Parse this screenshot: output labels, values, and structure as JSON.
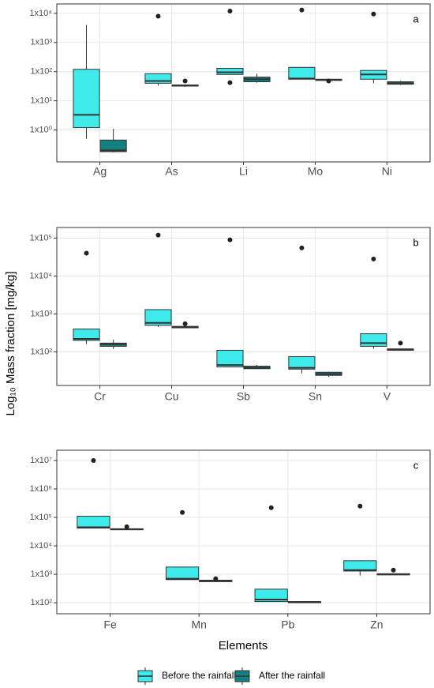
{
  "ylabel": "Log₁₀ Mass fraction [mg/kg]",
  "xlabel": "Elements",
  "legend": [
    {
      "name": "Before the rainfall",
      "color": "#3feaea"
    },
    {
      "name": "After the rainfall",
      "color": "#127f80"
    }
  ],
  "chart_data": [
    {
      "type": "box",
      "panel": "a",
      "log": true,
      "grid": true,
      "categories": [
        "Ag",
        "As",
        "Li",
        "Mo",
        "Ni"
      ],
      "ylim": [
        0.08,
        21000
      ],
      "yticks": [
        {
          "value": 1,
          "label": "1x10⁰"
        },
        {
          "value": 10,
          "label": "1x10¹"
        },
        {
          "value": 100,
          "label": "1x10²"
        },
        {
          "value": 1000,
          "label": "1x10³"
        },
        {
          "value": 10000,
          "label": "1x10⁴"
        }
      ],
      "series": [
        {
          "values": [
            {
              "min": 0.5,
              "q1": 1.2,
              "median": 3.3,
              "q3": 120,
              "max": 4000,
              "outliers": []
            },
            {
              "min": 33,
              "q1": 40,
              "median": 48,
              "q3": 85,
              "max": 85,
              "outliers": [
                8000
              ]
            },
            {
              "min": 80,
              "q1": 80,
              "median": 95,
              "q3": 130,
              "max": 130,
              "outliers": [
                12000,
                42
              ]
            },
            {
              "min": 55,
              "q1": 55,
              "median": 58,
              "q3": 140,
              "max": 140,
              "outliers": [
                13000
              ]
            },
            {
              "min": 40,
              "q1": 55,
              "median": 80,
              "q3": 110,
              "max": 110,
              "outliers": [
                9500
              ]
            }
          ]
        },
        {
          "values": [
            {
              "min": 0.17,
              "q1": 0.18,
              "median": 0.2,
              "q3": 0.45,
              "max": 1.1,
              "outliers": []
            },
            {
              "min": 30,
              "q1": 32,
              "median": 33,
              "q3": 35,
              "max": 36,
              "outliers": [
                48
              ]
            },
            {
              "min": 42,
              "q1": 45,
              "median": 55,
              "q3": 65,
              "max": 85,
              "outliers": []
            },
            {
              "min": 50,
              "q1": 50,
              "median": 52,
              "q3": 55,
              "max": 55,
              "outliers": [
                48
              ]
            },
            {
              "min": 35,
              "q1": 37,
              "median": 40,
              "q3": 45,
              "max": 48,
              "outliers": []
            }
          ]
        }
      ]
    },
    {
      "type": "box",
      "panel": "b",
      "log": true,
      "grid": true,
      "categories": [
        "Cr",
        "Cu",
        "Sb",
        "Sn",
        "V"
      ],
      "ylim": [
        13,
        190000
      ],
      "yticks": [
        {
          "value": 100,
          "label": "1x10²"
        },
        {
          "value": 1000,
          "label": "1x10³"
        },
        {
          "value": 10000,
          "label": "1x10⁴"
        },
        {
          "value": 100000,
          "label": "1x10⁵"
        }
      ],
      "series": [
        {
          "values": [
            {
              "min": 160,
              "q1": 200,
              "median": 220,
              "q3": 400,
              "max": 400,
              "outliers": [
                40000
              ]
            },
            {
              "min": 450,
              "q1": 500,
              "median": 580,
              "q3": 1300,
              "max": 1300,
              "outliers": [
                120000
              ]
            },
            {
              "min": 40,
              "q1": 40,
              "median": 45,
              "q3": 110,
              "max": 110,
              "outliers": [
                90000
              ]
            },
            {
              "min": 27,
              "q1": 35,
              "median": 38,
              "q3": 75,
              "max": 75,
              "outliers": [
                55000
              ]
            },
            {
              "min": 120,
              "q1": 140,
              "median": 170,
              "q3": 300,
              "max": 300,
              "outliers": [
                28000
              ]
            }
          ]
        },
        {
          "values": [
            {
              "min": 120,
              "q1": 140,
              "median": 160,
              "q3": 170,
              "max": 210,
              "outliers": []
            },
            {
              "min": 430,
              "q1": 430,
              "median": 450,
              "q3": 470,
              "max": 470,
              "outliers": [
                550
              ]
            },
            {
              "min": 35,
              "q1": 36,
              "median": 38,
              "q3": 42,
              "max": 45,
              "outliers": []
            },
            {
              "min": 22,
              "q1": 24,
              "median": 26,
              "q3": 29,
              "max": 30,
              "outliers": []
            },
            {
              "min": 110,
              "q1": 110,
              "median": 115,
              "q3": 120,
              "max": 120,
              "outliers": [
                170
              ]
            }
          ]
        }
      ]
    },
    {
      "type": "box",
      "panel": "c",
      "log": true,
      "grid": true,
      "categories": [
        "Fe",
        "Mn",
        "Pb",
        "Zn"
      ],
      "ylim": [
        41,
        23000000
      ],
      "yticks": [
        {
          "value": 100,
          "label": "1x10²"
        },
        {
          "value": 1000,
          "label": "1x10³"
        },
        {
          "value": 10000,
          "label": "1x10⁴"
        },
        {
          "value": 100000,
          "label": "1x10⁵"
        },
        {
          "value": 1000000,
          "label": "1x10⁶"
        },
        {
          "value": 10000000,
          "label": "1x10⁷"
        }
      ],
      "series": [
        {
          "values": [
            {
              "min": 42000,
              "q1": 42000,
              "median": 45000,
              "q3": 110000,
              "max": 110000,
              "outliers": [
                10000000
              ]
            },
            {
              "min": 650,
              "q1": 650,
              "median": 700,
              "q3": 1800,
              "max": 1800,
              "outliers": [
                150000
              ]
            },
            {
              "min": 110,
              "q1": 110,
              "median": 130,
              "q3": 300,
              "max": 300,
              "outliers": [
                220000
              ]
            },
            {
              "min": 900,
              "q1": 1300,
              "median": 1400,
              "q3": 3000,
              "max": 3000,
              "outliers": [
                250000
              ]
            }
          ]
        },
        {
          "values": [
            {
              "min": 37000,
              "q1": 37000,
              "median": 38000,
              "q3": 40000,
              "max": 40000,
              "outliers": [
                47000
              ]
            },
            {
              "min": 550,
              "q1": 550,
              "median": 600,
              "q3": 620,
              "max": 620,
              "outliers": [
                700
              ]
            },
            {
              "min": 100,
              "q1": 100,
              "median": 105,
              "q3": 110,
              "max": 110,
              "outliers": []
            },
            {
              "min": 950,
              "q1": 950,
              "median": 1000,
              "q3": 1050,
              "max": 1050,
              "outliers": [
                1400
              ]
            }
          ]
        }
      ]
    }
  ]
}
